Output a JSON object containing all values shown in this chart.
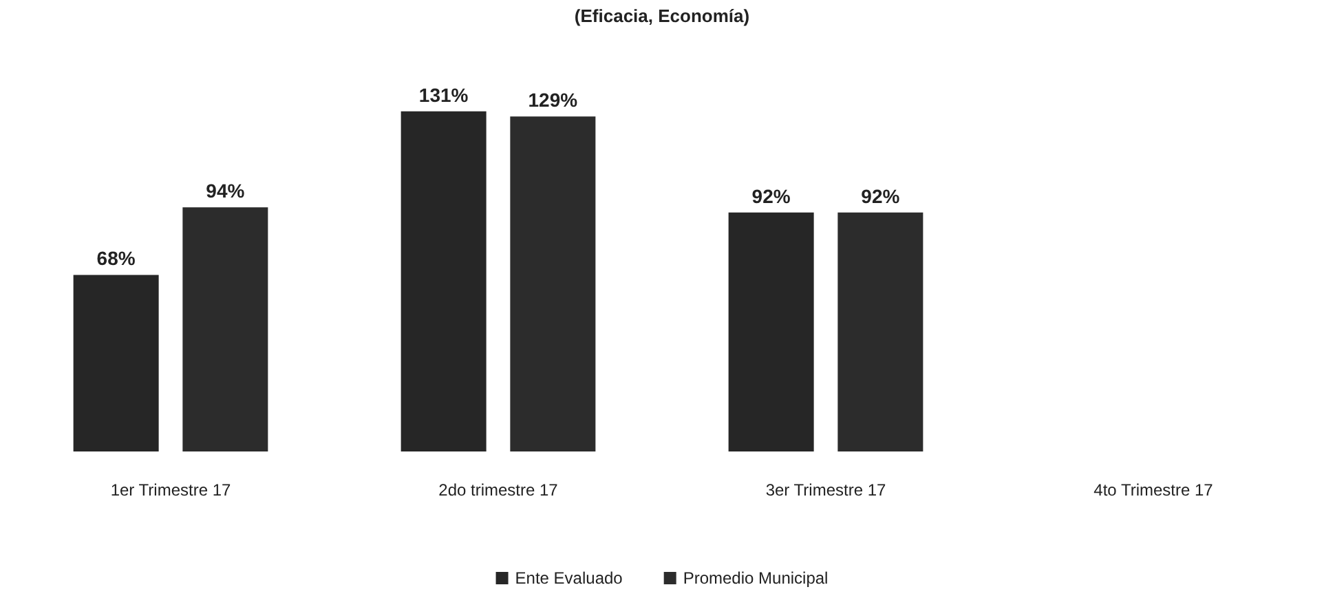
{
  "chart_data": {
    "type": "bar",
    "title": "(Eficacia, Economía)",
    "categories": [
      "1er Trimestre 17",
      "2do trimestre 17",
      "3er Trimestre 17",
      "4to Trimestre 17"
    ],
    "series": [
      {
        "name": "Ente Evaluado",
        "color": "#262626",
        "values": [
          68,
          131,
          92,
          null
        ],
        "value_labels": [
          "68%",
          "131%",
          "92%",
          null
        ]
      },
      {
        "name": "Promedio Municipal",
        "color": "#2c2c2c",
        "values": [
          94,
          129,
          92,
          null
        ],
        "value_labels": [
          "94%",
          "129%",
          "92%",
          null
        ]
      }
    ],
    "legend": "bottom"
  }
}
